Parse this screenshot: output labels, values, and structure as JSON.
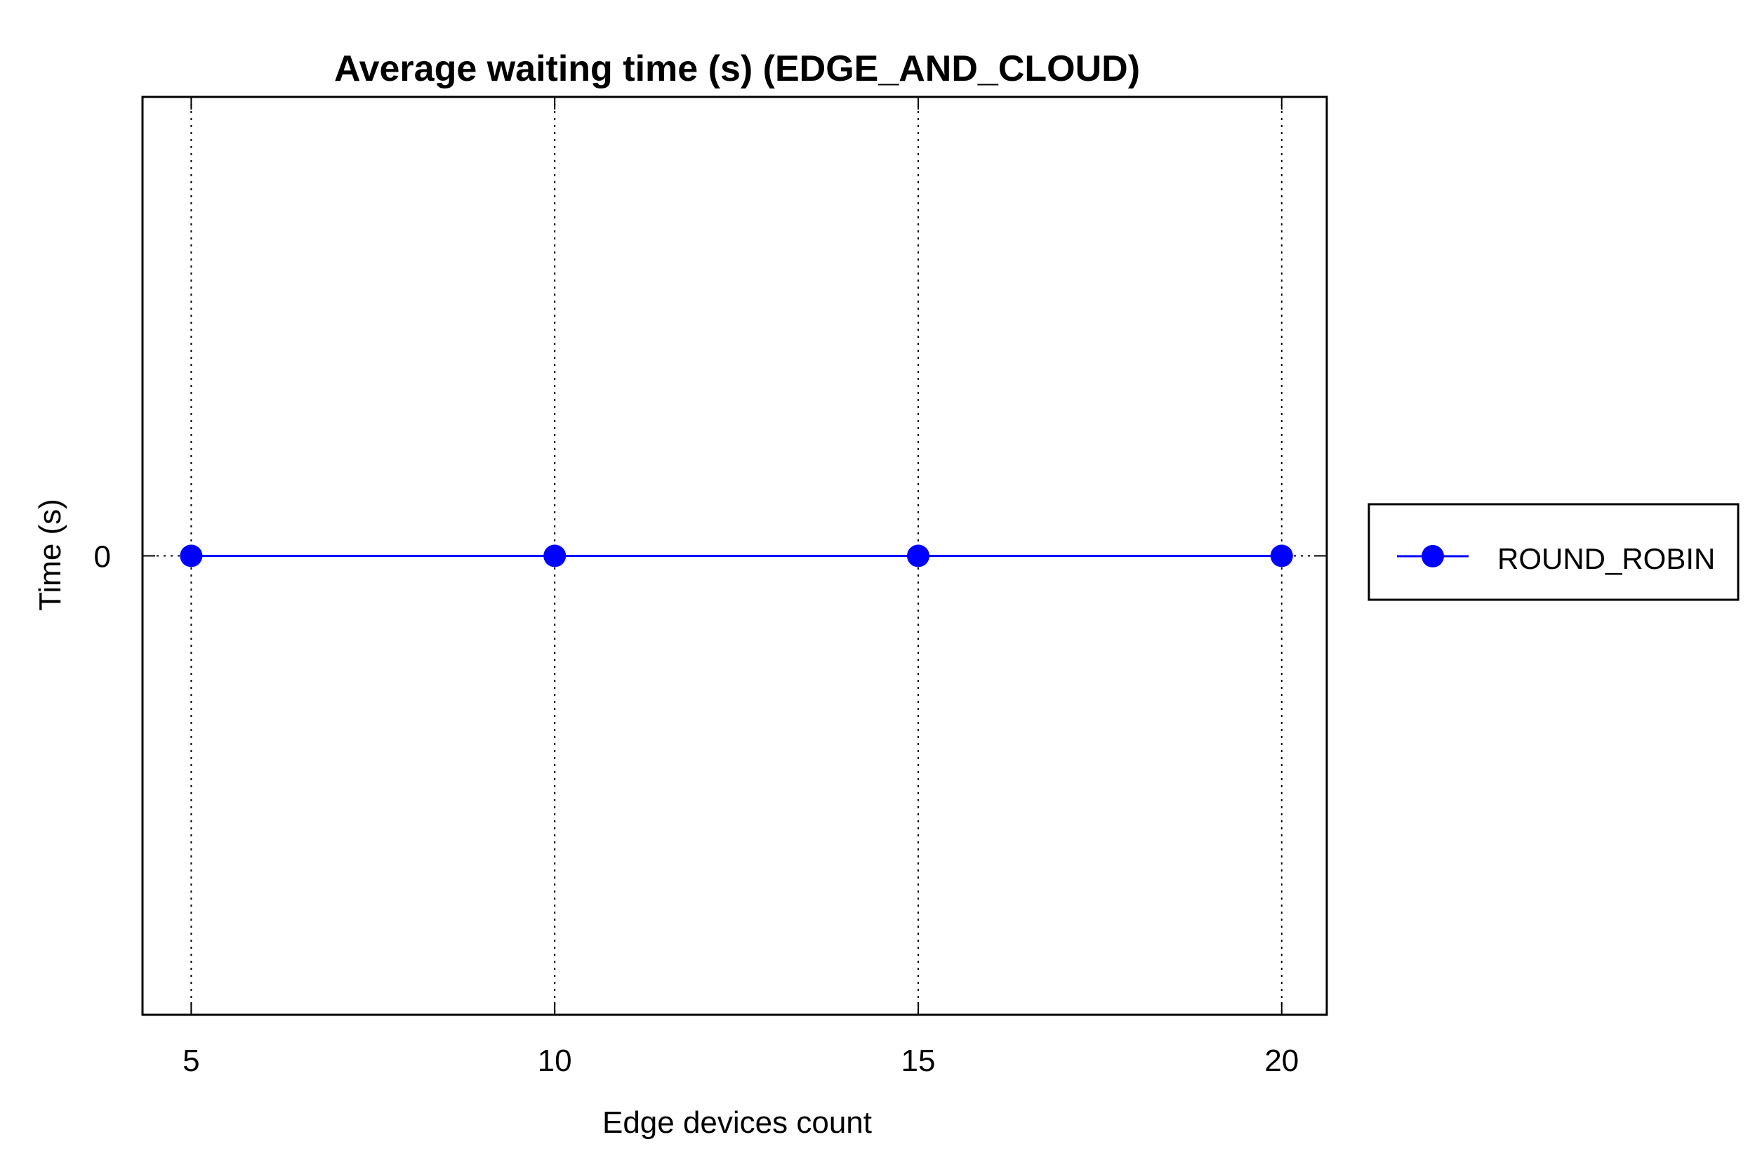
{
  "chart_data": {
    "type": "line",
    "title": "Average waiting time (s) (EDGE_AND_CLOUD)",
    "xlabel": "Edge devices count",
    "ylabel": "Time (s)",
    "x": [
      5,
      10,
      15,
      20
    ],
    "x_ticks": [
      "5",
      "10",
      "15",
      "20"
    ],
    "xlim": [
      4.33,
      20.62
    ],
    "y_ticks": [
      "0"
    ],
    "ylim": [
      -1,
      1
    ],
    "grid": "vertical dotted",
    "legend_position": "outside-right",
    "series": [
      {
        "name": "ROUND_ROBIN",
        "values": [
          0,
          0,
          0,
          0
        ],
        "color": "#0000ff",
        "marker": "circle"
      }
    ]
  }
}
